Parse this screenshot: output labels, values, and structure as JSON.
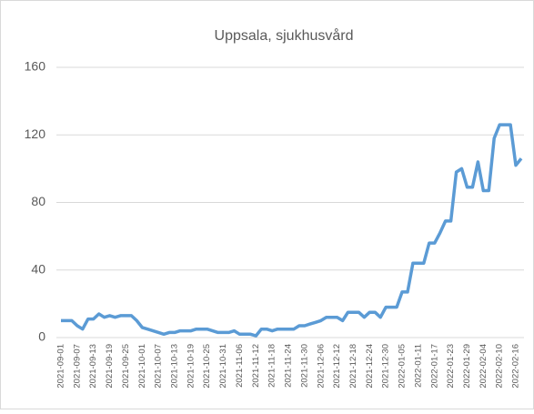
{
  "chart_data": {
    "type": "line",
    "title": "Uppsala, sjukhusvård",
    "categories": [
      "2021-09-01",
      null,
      null,
      "2021-09-07",
      null,
      null,
      "2021-09-13",
      null,
      null,
      "2021-09-19",
      null,
      null,
      "2021-09-25",
      null,
      null,
      "2021-10-01",
      null,
      null,
      "2021-10-07",
      null,
      null,
      "2021-10-13",
      null,
      null,
      "2021-10-19",
      null,
      null,
      "2021-10-25",
      null,
      null,
      "2021-10-31",
      null,
      null,
      "2021-11-06",
      null,
      null,
      "2021-11-12",
      null,
      null,
      "2021-11-18",
      null,
      null,
      "2021-11-24",
      null,
      null,
      "2021-11-30",
      null,
      null,
      "2021-12-06",
      null,
      null,
      "2021-12-12",
      null,
      null,
      "2021-12-18",
      null,
      null,
      "2021-12-24",
      null,
      null,
      "2021-12-30",
      null,
      null,
      "2022-01-05",
      null,
      null,
      "2022-01-11",
      null,
      null,
      "2022-01-17",
      null,
      null,
      "2022-01-23",
      null,
      null,
      "2022-01-29",
      null,
      null,
      "2022-02-04",
      null,
      null,
      "2022-02-10",
      null,
      null,
      "2022-02-16",
      null
    ],
    "series": [
      {
        "name": "Uppsala",
        "color": "#5b9bd5",
        "values": [
          10,
          10,
          10,
          7,
          5,
          11,
          11,
          14,
          12,
          13,
          12,
          13,
          13,
          13,
          10,
          6,
          5,
          4,
          3,
          2,
          3,
          3,
          4,
          4,
          4,
          5,
          5,
          5,
          4,
          3,
          3,
          3,
          4,
          2,
          2,
          2,
          1,
          5,
          5,
          4,
          5,
          5,
          5,
          5,
          7,
          7,
          8,
          9,
          10,
          12,
          12,
          12,
          10,
          15,
          15,
          15,
          12,
          15,
          15,
          12,
          18,
          18,
          18,
          27,
          27,
          44,
          44,
          44,
          56,
          56,
          62,
          69,
          69,
          98,
          100,
          89,
          89,
          104,
          87,
          87,
          118,
          126,
          126,
          126,
          102,
          106
        ]
      }
    ],
    "ylim": [
      0,
      160
    ],
    "yticks": [
      0,
      40,
      80,
      120,
      160
    ],
    "grid": true
  }
}
